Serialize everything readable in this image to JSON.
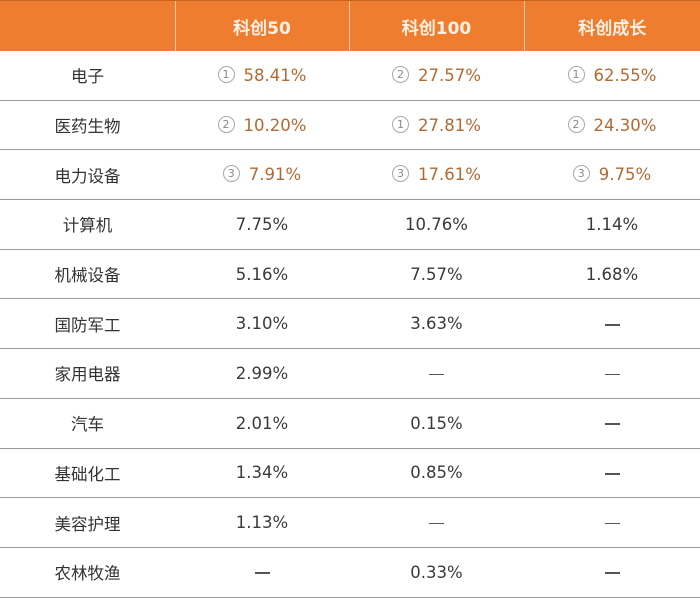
{
  "colors": {
    "header_bg": "#ef7d30",
    "header_text": "#fdf1e6",
    "highlight_text": "#b26a32",
    "body_text": "#3a3a3a",
    "row_divider": "#9a9a9a"
  },
  "table": {
    "columns": [
      "",
      "科创50",
      "科创100",
      "科创成长"
    ],
    "rows": [
      {
        "industry": "电子",
        "cells": [
          {
            "rank": "①",
            "value": "58.41%"
          },
          {
            "rank": "②",
            "value": "27.57%"
          },
          {
            "rank": "①",
            "value": "62.55%"
          }
        ]
      },
      {
        "industry": "医药生物",
        "cells": [
          {
            "rank": "②",
            "value": "10.20%"
          },
          {
            "rank": "①",
            "value": "27.81%"
          },
          {
            "rank": "②",
            "value": "24.30%"
          }
        ]
      },
      {
        "industry": "电力设备",
        "cells": [
          {
            "rank": "③",
            "value": "7.91%"
          },
          {
            "rank": "③",
            "value": "17.61%"
          },
          {
            "rank": "③",
            "value": "9.75%"
          }
        ]
      },
      {
        "industry": "计算机",
        "cells": [
          {
            "value": "7.75%"
          },
          {
            "value": "10.76%"
          },
          {
            "value": "1.14%"
          }
        ]
      },
      {
        "industry": "机械设备",
        "cells": [
          {
            "value": "5.16%"
          },
          {
            "value": "7.57%"
          },
          {
            "value": "1.68%"
          }
        ]
      },
      {
        "industry": "国防军工",
        "cells": [
          {
            "value": "3.10%"
          },
          {
            "value": "3.63%"
          },
          {
            "value": "—"
          }
        ]
      },
      {
        "industry": "家用电器",
        "cells": [
          {
            "value": "2.99%"
          },
          {
            "value": "—"
          },
          {
            "value": "—"
          }
        ]
      },
      {
        "industry": "汽车",
        "cells": [
          {
            "value": "2.01%"
          },
          {
            "value": "0.15%"
          },
          {
            "value": "—"
          }
        ]
      },
      {
        "industry": "基础化工",
        "cells": [
          {
            "value": "1.34%"
          },
          {
            "value": "0.85%"
          },
          {
            "value": "—"
          }
        ]
      },
      {
        "industry": "美容护理",
        "cells": [
          {
            "value": "1.13%"
          },
          {
            "value": "—"
          },
          {
            "value": "—"
          }
        ]
      },
      {
        "industry": "农林牧渔",
        "cells": [
          {
            "value": "—"
          },
          {
            "value": "0.33%"
          },
          {
            "value": "—"
          }
        ]
      }
    ]
  }
}
